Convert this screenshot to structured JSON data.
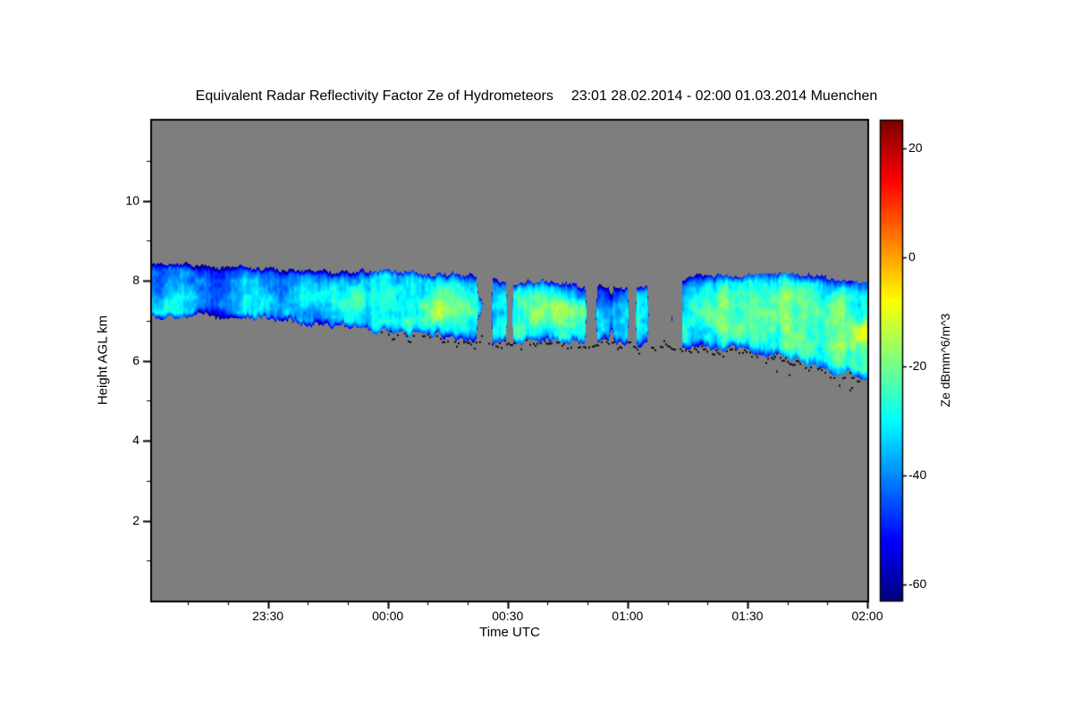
{
  "figure": {
    "background": "#ffffff",
    "plot_background": "#7e7e7e",
    "frame_color": "#000000",
    "text_color": "#000000"
  },
  "chart_data": {
    "type": "heatmap",
    "title": "Equivalent Radar Reflectivity Factor Ze of Hydrometeors",
    "subtitle": "23:01 28.02.2014 - 02:00 01.03.2014 Muenchen",
    "xlabel": "Time UTC",
    "ylabel": "Height AGL km",
    "x_axis": {
      "start_time": "23:01",
      "end_time": "02:00",
      "total_minutes": 179,
      "major_ticks": [
        {
          "minute": 29,
          "label": "23:30"
        },
        {
          "minute": 59,
          "label": "00:00"
        },
        {
          "minute": 89,
          "label": "00:30"
        },
        {
          "minute": 119,
          "label": "01:00"
        },
        {
          "minute": 149,
          "label": "01:30"
        },
        {
          "minute": 179,
          "label": "02:00"
        }
      ],
      "minor_tick_every_minutes": 10
    },
    "y_axis": {
      "range_km": [
        0,
        12
      ],
      "major_ticks": [
        2,
        4,
        6,
        8,
        10
      ],
      "minor_tick_every_km": 1
    },
    "colorbar": {
      "label": "Ze dBmm^6/m^3",
      "min": -63,
      "max": 25,
      "ticks": [
        20,
        0,
        -20,
        -40,
        -60
      ],
      "colormap": "jet"
    },
    "cloud_layer": {
      "description": "Single elevated hydrometeor layer. Cloud top near 8.4 km AGL at 23:01 slowly lowering to ~8.0 km by 02:00; cloud base descends from ~7.1 km to ~5.6 km. Reflectivity mostly -45 to -25 dB (blue/cyan) with embedded maxima up to ~-10 dB (green/yellow) after 01:30. Layer becomes broken between ~00:40 and 01:15 with a distinct gap near 01:11. Black speckles mark detected cloud base from ~00:00 onward.",
      "time_frac": [
        0,
        0.03,
        0.06,
        0.09,
        0.12,
        0.15,
        0.18,
        0.21,
        0.24,
        0.27,
        0.3,
        0.33,
        0.36,
        0.39,
        0.42,
        0.45,
        0.48,
        0.51,
        0.54,
        0.57,
        0.6,
        0.63,
        0.66,
        0.69,
        0.715,
        0.728,
        0.744,
        0.76,
        0.79,
        0.82,
        0.85,
        0.88,
        0.91,
        0.94,
        0.97,
        1.0
      ],
      "top_km": [
        8.4,
        8.45,
        8.38,
        8.32,
        8.36,
        8.3,
        8.28,
        8.24,
        8.26,
        8.22,
        8.24,
        8.26,
        8.22,
        8.16,
        8.2,
        8.12,
        8.02,
        7.95,
        8.0,
        7.96,
        7.9,
        7.86,
        7.82,
        7.86,
        7.8,
        7.72,
        8.05,
        8.15,
        8.12,
        8.1,
        8.16,
        8.2,
        8.14,
        8.1,
        8.02,
        7.95
      ],
      "base_km": [
        7.05,
        7.1,
        7.12,
        7.15,
        7.1,
        7.05,
        7.0,
        6.95,
        6.9,
        6.85,
        6.8,
        6.74,
        6.68,
        6.65,
        6.6,
        6.58,
        6.52,
        6.48,
        6.5,
        6.5,
        6.46,
        6.5,
        6.45,
        6.4,
        6.45,
        6.42,
        6.4,
        6.35,
        6.32,
        6.28,
        6.22,
        6.1,
        5.95,
        5.8,
        5.68,
        5.55
      ],
      "peak_dbz": [
        -33,
        -29,
        -33,
        -36,
        -32,
        -29,
        -34,
        -31,
        -34,
        -31,
        -27,
        -24,
        -22,
        -25,
        -22,
        -26,
        -30,
        -27,
        -23,
        -26,
        -29,
        -31,
        -28,
        -30,
        -34,
        -40,
        -30,
        -26,
        -23,
        -21,
        -19,
        -17,
        -18,
        -20,
        -18,
        -22
      ],
      "patchy_regions": [
        {
          "range": [
            0.44,
            0.56
          ],
          "threshold": 0.7
        },
        {
          "range": [
            0.56,
            0.75
          ],
          "threshold": 0.6
        }
      ],
      "hard_gap_frac": [
        0.728,
        0.742
      ],
      "base_dots": {
        "start_frac": 0.32,
        "color": "#0a0a0a"
      },
      "noise_seed": 7
    }
  }
}
